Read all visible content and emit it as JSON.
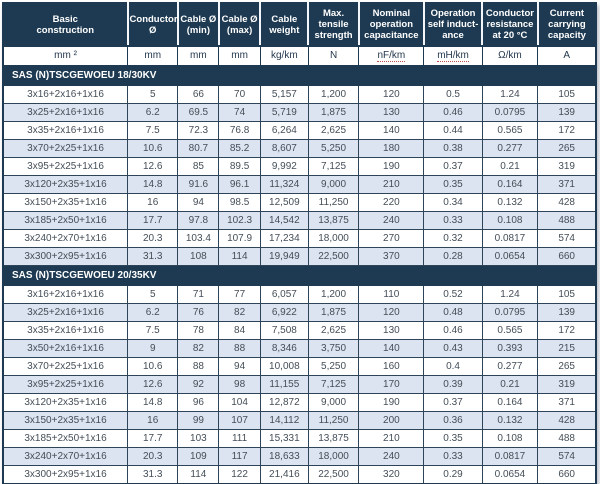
{
  "colors": {
    "header_bg": "#1e3a52",
    "row_alt_bg": "#dbe4f0",
    "data_text": "#454e57",
    "squiggle_underline": "#c0504d"
  },
  "table": {
    "columns": [
      {
        "label": "Basic\nconstruction",
        "unit": "mm ²"
      },
      {
        "label": "Conductor\nØ",
        "unit": "mm"
      },
      {
        "label": "Cable Ø\n(min)",
        "unit": "mm"
      },
      {
        "label": "Cable Ø\n(max)",
        "unit": "mm"
      },
      {
        "label": "Cable\nweight",
        "unit": "kg/km"
      },
      {
        "label": "Max.\ntensile\nstrength",
        "unit": "N"
      },
      {
        "label": "Nominal\noperation\ncapacitance",
        "unit": "nF/km"
      },
      {
        "label": "Operation\nself induct-\nance",
        "unit": "mH/km"
      },
      {
        "label": "Conductor\nresistance\nat 20 °C",
        "unit": "Ω/km"
      },
      {
        "label": "Current\ncarrying\ncapacity",
        "unit": "A"
      }
    ],
    "sections": [
      {
        "title": "SAS (N)TSCGEWOEU 18/30KV",
        "rows": [
          [
            "3x16+2x16+1x16",
            "5",
            "66",
            "70",
            "5,157",
            "1,200",
            "120",
            "0.5",
            "1.24",
            "105"
          ],
          [
            "3x25+2x16+1x16",
            "6.2",
            "69.5",
            "74",
            "5,719",
            "1,875",
            "130",
            "0.46",
            "0.0795",
            "139"
          ],
          [
            "3x35+2x16+1x16",
            "7.5",
            "72.3",
            "76.8",
            "6,264",
            "2,625",
            "140",
            "0.44",
            "0.565",
            "172"
          ],
          [
            "3x70+2x25+1x16",
            "10.6",
            "80.7",
            "85.2",
            "8,607",
            "5,250",
            "180",
            "0.38",
            "0.277",
            "265"
          ],
          [
            "3x95+2x25+1x16",
            "12.6",
            "85",
            "89.5",
            "9,992",
            "7,125",
            "190",
            "0.37",
            "0.21",
            "319"
          ],
          [
            "3x120+2x35+1x16",
            "14.8",
            "91.6",
            "96.1",
            "11,324",
            "9,000",
            "210",
            "0.35",
            "0.164",
            "371"
          ],
          [
            "3x150+2x35+1x16",
            "16",
            "94",
            "98.5",
            "12,509",
            "11,250",
            "220",
            "0.34",
            "0.132",
            "428"
          ],
          [
            "3x185+2x50+1x16",
            "17.7",
            "97.8",
            "102.3",
            "14,542",
            "13,875",
            "240",
            "0.33",
            "0.108",
            "488"
          ],
          [
            "3x240+2x70+1x16",
            "20.3",
            "103.4",
            "107.9",
            "17,234",
            "18,000",
            "270",
            "0.32",
            "0.0817",
            "574"
          ],
          [
            "3x300+2x95+1x16",
            "31.3",
            "108",
            "114",
            "19,949",
            "22,500",
            "370",
            "0.28",
            "0.0654",
            "660"
          ]
        ]
      },
      {
        "title": "SAS (N)TSCGEWOEU 20/35KV",
        "rows": [
          [
            "3x16+2x16+1x16",
            "5",
            "71",
            "77",
            "6,057",
            "1,200",
            "110",
            "0.52",
            "1.24",
            "105"
          ],
          [
            "3x25+2x16+1x16",
            "6.2",
            "76",
            "82",
            "6,922",
            "1,875",
            "120",
            "0.48",
            "0.0795",
            "139"
          ],
          [
            "3x35+2x16+1x16",
            "7.5",
            "78",
            "84",
            "7,508",
            "2,625",
            "130",
            "0.46",
            "0.565",
            "172"
          ],
          [
            "3x50+2x16+1x16",
            "9",
            "82",
            "88",
            "8,346",
            "3,750",
            "140",
            "0.43",
            "0.393",
            "215"
          ],
          [
            "3x70+2x25+1x16",
            "10.6",
            "88",
            "94",
            "10,008",
            "5,250",
            "160",
            "0.4",
            "0.277",
            "265"
          ],
          [
            "3x95+2x25+1x16",
            "12.6",
            "92",
            "98",
            "11,155",
            "7,125",
            "170",
            "0.39",
            "0.21",
            "319"
          ],
          [
            "3x120+2x35+1x16",
            "14.8",
            "96",
            "104",
            "12,872",
            "9,000",
            "190",
            "0.37",
            "0.164",
            "371"
          ],
          [
            "3x150+2x35+1x16",
            "16",
            "99",
            "107",
            "14,112",
            "11,250",
            "200",
            "0.36",
            "0.132",
            "428"
          ],
          [
            "3x185+2x50+1x16",
            "17.7",
            "103",
            "111",
            "15,331",
            "13,875",
            "210",
            "0.35",
            "0.108",
            "488"
          ],
          [
            "3x240+2x70+1x16",
            "20.3",
            "109",
            "117",
            "18,633",
            "18,000",
            "240",
            "0.33",
            "0.0817",
            "574"
          ],
          [
            "3x300+2x95+1x16",
            "31.3",
            "114",
            "122",
            "21,416",
            "22,500",
            "320",
            "0.29",
            "0.0654",
            "660"
          ]
        ]
      }
    ]
  }
}
